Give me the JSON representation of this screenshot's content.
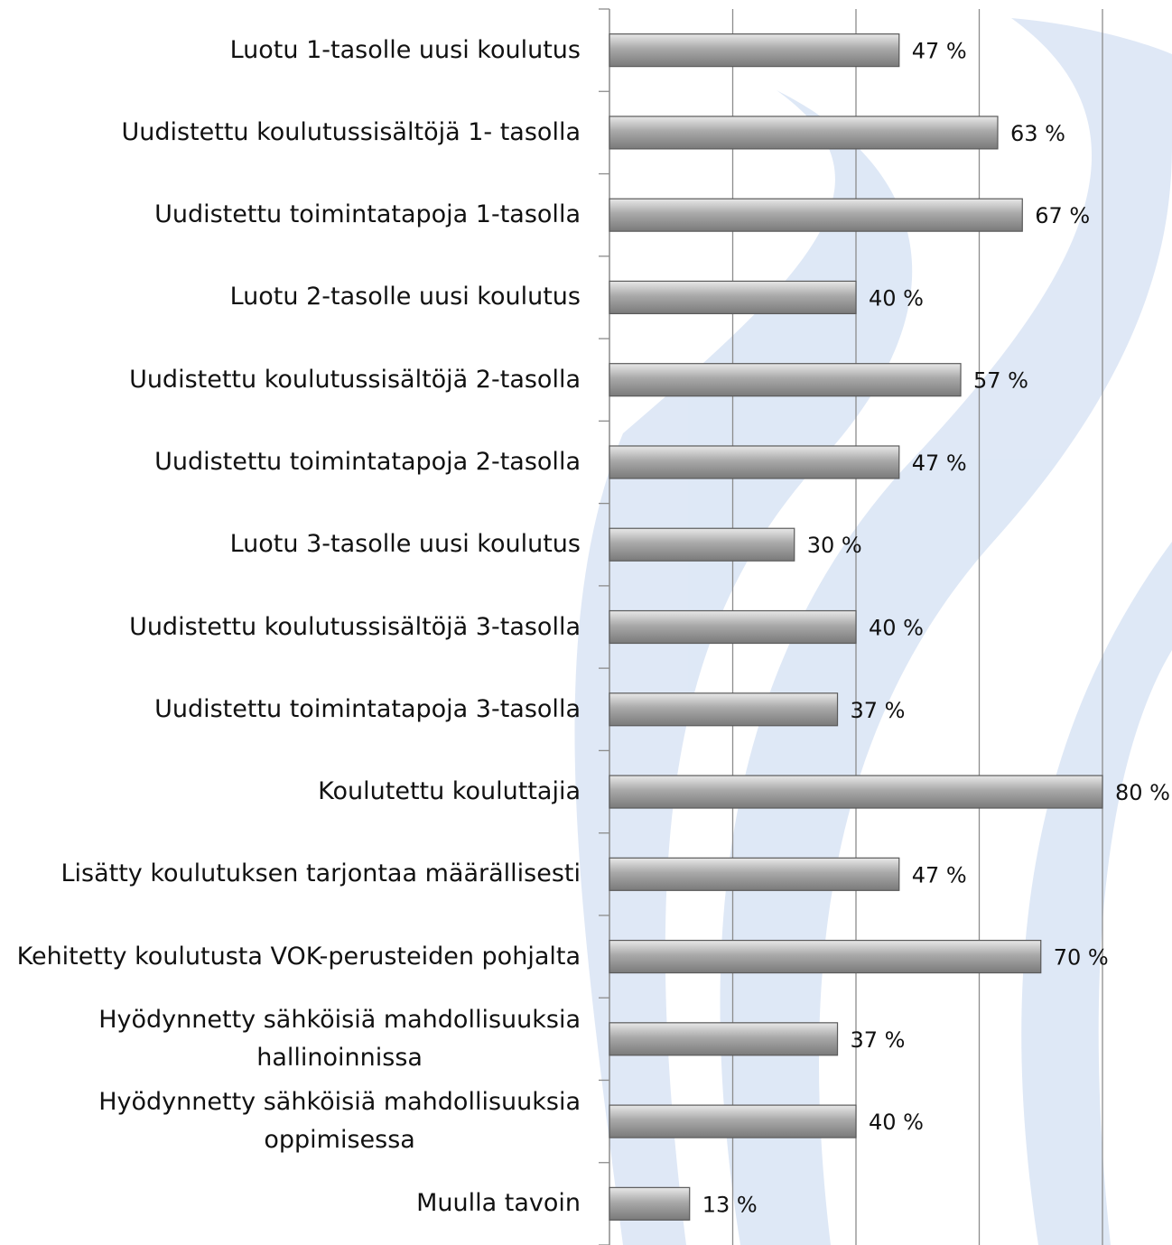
{
  "chart_data": {
    "type": "bar",
    "orientation": "horizontal",
    "categories": [
      "Luotu 1-tasolle uusi koulutus",
      "Uudistettu koulutussisältöjä 1- tasolla",
      "Uudistettu toimintatapoja 1-tasolla",
      "Luotu 2-tasolle uusi koulutus",
      "Uudistettu koulutussisältöjä 2-tasolla",
      "Uudistettu toimintatapoja 2-tasolla",
      "Luotu 3-tasolle uusi koulutus",
      "Uudistettu koulutussisältöjä 3-tasolla",
      "Uudistettu toimintatapoja 3-tasolla",
      "Koulutettu kouluttajia",
      "Lisätty koulutuksen tarjontaa määrällisesti",
      "Kehitetty koulutusta VOK-perusteiden pohjalta",
      "Hyödynnetty sähköisiä mahdollisuuksia\nhallinoinnissa",
      "Hyödynnetty sähköisiä mahdollisuuksia\noppimisessa",
      "Muulla tavoin"
    ],
    "values": [
      47,
      63,
      67,
      40,
      57,
      47,
      30,
      40,
      37,
      80,
      47,
      70,
      37,
      40,
      13
    ],
    "value_labels": [
      "47 %",
      "63 %",
      "67 %",
      "40 %",
      "57 %",
      "47 %",
      "30 %",
      "40 %",
      "37 %",
      "80 %",
      "47 %",
      "70 %",
      "37 %",
      "40 %",
      "13 %"
    ],
    "color": "#a6a6a6",
    "xlim": [
      0,
      80
    ],
    "xticks": [
      0,
      20,
      40,
      60,
      80
    ],
    "grid": true
  }
}
